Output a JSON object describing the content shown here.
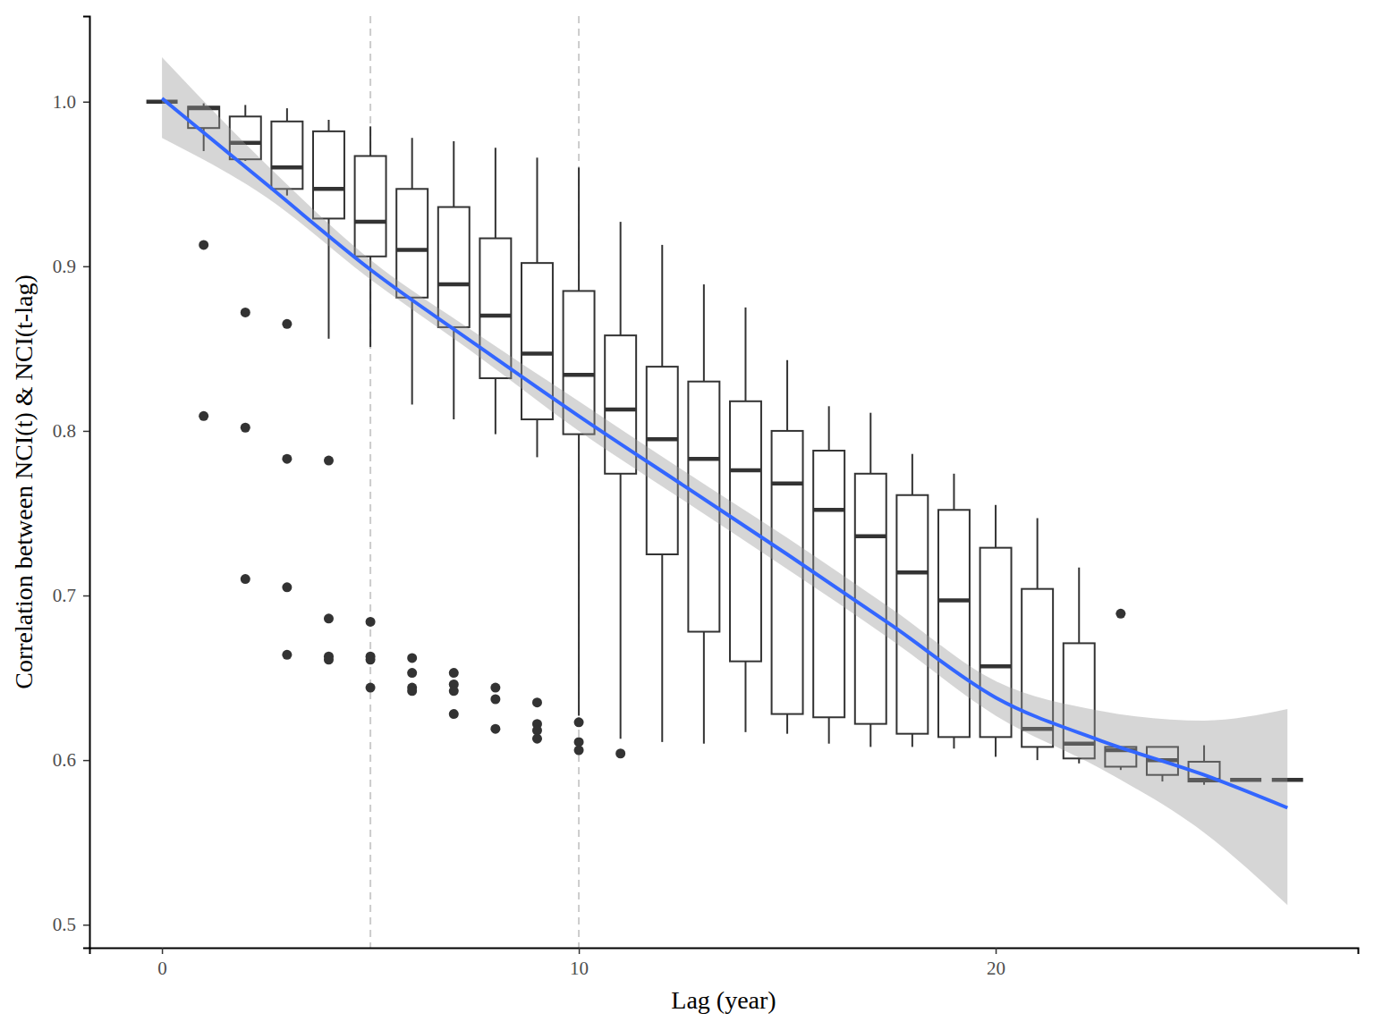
{
  "chart_data": {
    "type": "box",
    "x_label": "Lag (year)",
    "y_label": "Correlation between NCI(t) & NCI(t-lag)",
    "xlim": [
      -1.74,
      28.69
    ],
    "ylim": [
      0.486,
      1.052
    ],
    "xticks": [
      0,
      10,
      20
    ],
    "yticks": [
      0.5,
      0.6,
      0.7,
      0.8,
      0.9,
      {
        "value": 1,
        "label": "1.0"
      }
    ],
    "reference_lines": [
      5,
      10
    ],
    "boxes": [
      {
        "x": 0,
        "whisker_low": 1,
        "q1": 1,
        "median": 1,
        "q3": 1,
        "whisker_high": 1,
        "outliers": []
      },
      {
        "x": 1,
        "whisker_low": 0.97,
        "q1": 0.984,
        "median": 0.996,
        "q3": 0.997,
        "whisker_high": 0.999,
        "outliers": [
          0.913,
          0.809
        ]
      },
      {
        "x": 2,
        "whisker_low": 0.964,
        "q1": 0.965,
        "median": 0.975,
        "q3": 0.991,
        "whisker_high": 0.998,
        "outliers": [
          0.872,
          0.802,
          0.71
        ]
      },
      {
        "x": 3,
        "whisker_low": 0.943,
        "q1": 0.947,
        "median": 0.96,
        "q3": 0.988,
        "whisker_high": 0.996,
        "outliers": [
          0.865,
          0.783,
          0.705,
          0.664
        ]
      },
      {
        "x": 4,
        "whisker_low": 0.856,
        "q1": 0.929,
        "median": 0.947,
        "q3": 0.982,
        "whisker_high": 0.989,
        "outliers": [
          0.782,
          0.686,
          0.663,
          0.661
        ]
      },
      {
        "x": 5,
        "whisker_low": 0.851,
        "q1": 0.906,
        "median": 0.927,
        "q3": 0.967,
        "whisker_high": 0.985,
        "outliers": [
          0.684,
          0.663,
          0.661,
          0.644
        ]
      },
      {
        "x": 6,
        "whisker_low": 0.816,
        "q1": 0.881,
        "median": 0.91,
        "q3": 0.947,
        "whisker_high": 0.978,
        "outliers": [
          0.662,
          0.653,
          0.644,
          0.642
        ]
      },
      {
        "x": 7,
        "whisker_low": 0.807,
        "q1": 0.863,
        "median": 0.889,
        "q3": 0.936,
        "whisker_high": 0.976,
        "outliers": [
          0.653,
          0.646,
          0.642,
          0.628
        ]
      },
      {
        "x": 8,
        "whisker_low": 0.798,
        "q1": 0.832,
        "median": 0.87,
        "q3": 0.917,
        "whisker_high": 0.972,
        "outliers": [
          0.644,
          0.637,
          0.619
        ]
      },
      {
        "x": 9,
        "whisker_low": 0.784,
        "q1": 0.807,
        "median": 0.847,
        "q3": 0.902,
        "whisker_high": 0.966,
        "outliers": [
          0.635,
          0.622,
          0.618,
          0.613
        ]
      },
      {
        "x": 10,
        "whisker_low": 0.627,
        "q1": 0.798,
        "median": 0.834,
        "q3": 0.885,
        "whisker_high": 0.96,
        "outliers": [
          0.623,
          0.611,
          0.606
        ]
      },
      {
        "x": 11,
        "whisker_low": 0.613,
        "q1": 0.774,
        "median": 0.813,
        "q3": 0.858,
        "whisker_high": 0.927,
        "outliers": [
          0.604
        ]
      },
      {
        "x": 12,
        "whisker_low": 0.611,
        "q1": 0.725,
        "median": 0.795,
        "q3": 0.839,
        "whisker_high": 0.913,
        "outliers": []
      },
      {
        "x": 13,
        "whisker_low": 0.61,
        "q1": 0.678,
        "median": 0.783,
        "q3": 0.83,
        "whisker_high": 0.889,
        "outliers": []
      },
      {
        "x": 14,
        "whisker_low": 0.617,
        "q1": 0.66,
        "median": 0.776,
        "q3": 0.818,
        "whisker_high": 0.875,
        "outliers": []
      },
      {
        "x": 15,
        "whisker_low": 0.616,
        "q1": 0.628,
        "median": 0.768,
        "q3": 0.8,
        "whisker_high": 0.843,
        "outliers": []
      },
      {
        "x": 16,
        "whisker_low": 0.61,
        "q1": 0.626,
        "median": 0.752,
        "q3": 0.788,
        "whisker_high": 0.815,
        "outliers": []
      },
      {
        "x": 17,
        "whisker_low": 0.608,
        "q1": 0.622,
        "median": 0.736,
        "q3": 0.774,
        "whisker_high": 0.811,
        "outliers": []
      },
      {
        "x": 18,
        "whisker_low": 0.608,
        "q1": 0.616,
        "median": 0.714,
        "q3": 0.761,
        "whisker_high": 0.786,
        "outliers": []
      },
      {
        "x": 19,
        "whisker_low": 0.607,
        "q1": 0.614,
        "median": 0.697,
        "q3": 0.752,
        "whisker_high": 0.774,
        "outliers": []
      },
      {
        "x": 20,
        "whisker_low": 0.602,
        "q1": 0.614,
        "median": 0.657,
        "q3": 0.729,
        "whisker_high": 0.755,
        "outliers": []
      },
      {
        "x": 21,
        "whisker_low": 0.6,
        "q1": 0.608,
        "median": 0.619,
        "q3": 0.704,
        "whisker_high": 0.747,
        "outliers": []
      },
      {
        "x": 22,
        "whisker_low": 0.598,
        "q1": 0.601,
        "median": 0.61,
        "q3": 0.671,
        "whisker_high": 0.717,
        "outliers": []
      },
      {
        "x": 23,
        "whisker_low": 0.594,
        "q1": 0.596,
        "median": 0.606,
        "q3": 0.608,
        "whisker_high": 0.608,
        "outliers": [
          0.689
        ]
      },
      {
        "x": 24,
        "whisker_low": 0.587,
        "q1": 0.591,
        "median": 0.6,
        "q3": 0.608,
        "whisker_high": 0.608,
        "outliers": []
      },
      {
        "x": 25,
        "whisker_low": 0.585,
        "q1": 0.587,
        "median": 0.588,
        "q3": 0.599,
        "whisker_high": 0.609,
        "outliers": []
      },
      {
        "x": 26,
        "whisker_low": 0.588,
        "q1": 0.588,
        "median": 0.588,
        "q3": 0.588,
        "whisker_high": 0.588,
        "outliers": []
      },
      {
        "x": 27,
        "whisker_low": 0.588,
        "q1": 0.588,
        "median": 0.588,
        "q3": 0.588,
        "whisker_high": 0.588,
        "outliers": []
      }
    ],
    "smooth": {
      "color": "#3366ff",
      "x": [
        0,
        2.5,
        5,
        7.5,
        10,
        12.5,
        15,
        17.5,
        20,
        22.5,
        25,
        27
      ],
      "values": [
        1.002,
        0.95,
        0.898,
        0.853,
        0.809,
        0.767,
        0.725,
        0.682,
        0.638,
        0.612,
        0.591,
        0.571
      ],
      "lower": [
        0.978,
        0.942,
        0.892,
        0.847,
        0.8,
        0.758,
        0.716,
        0.673,
        0.627,
        0.595,
        0.556,
        0.512
      ],
      "upper": [
        1.027,
        0.962,
        0.904,
        0.86,
        0.818,
        0.776,
        0.735,
        0.692,
        0.648,
        0.63,
        0.624,
        0.631
      ]
    }
  }
}
